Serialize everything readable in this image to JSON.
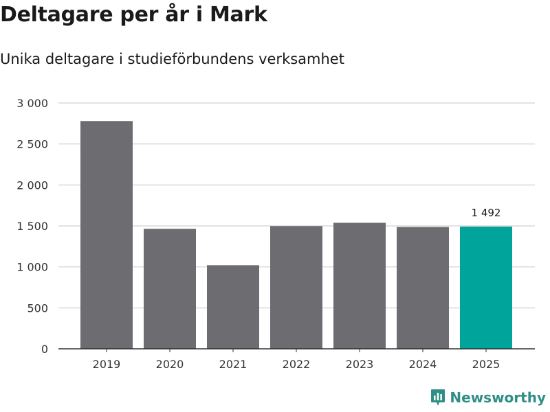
{
  "header": {
    "title": "Deltagare per år i Mark",
    "subtitle": "Unika deltagare i studieförbundens verksamhet"
  },
  "brand": {
    "name": "Newsworthy",
    "icon": "newsworthy-logo-icon",
    "color": "#2f8f86"
  },
  "colors": {
    "bar": "#6d6c71",
    "highlight": "#00a49a",
    "grid": "#d9d9d9",
    "axis": "#333333"
  },
  "chart_data": {
    "type": "bar",
    "categories": [
      "2019",
      "2020",
      "2021",
      "2022",
      "2023",
      "2024",
      "2025"
    ],
    "values": [
      2780,
      1465,
      1020,
      1498,
      1538,
      1487,
      1492
    ],
    "highlight_index": 6,
    "data_labels": [
      {
        "index": 6,
        "text": "1 492"
      }
    ],
    "yticks": [
      0,
      500,
      1000,
      1500,
      2000,
      2500,
      3000
    ],
    "ytick_labels": [
      "0",
      "500",
      "1 000",
      "1 500",
      "2 000",
      "2 500",
      "3 000"
    ],
    "ylim": [
      0,
      3000
    ],
    "grid": true,
    "legend": false
  }
}
